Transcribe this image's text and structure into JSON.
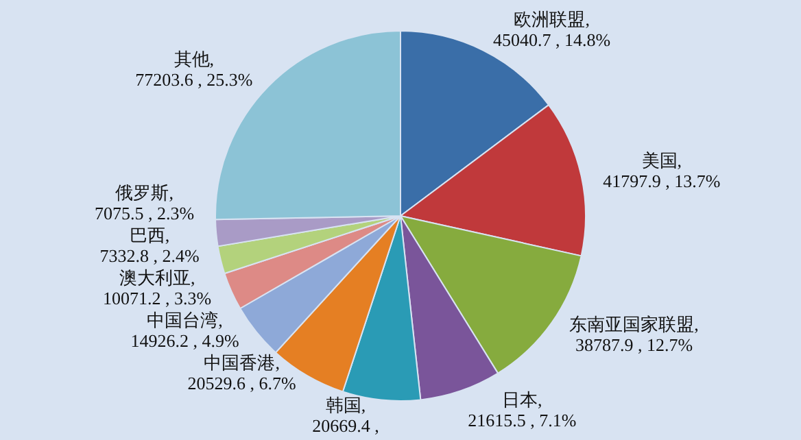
{
  "chart_data": {
    "type": "pie",
    "categories": [
      "欧洲联盟",
      "美国",
      "东南亚国家联盟",
      "日本",
      "韩国",
      "中国香港",
      "中国台湾",
      "澳大利亚",
      "巴西",
      "俄罗斯",
      "其他"
    ],
    "values": [
      45040.7,
      41797.9,
      38787.9,
      21615.5,
      20669.4,
      20529.6,
      14926.2,
      10071.2,
      7332.8,
      7075.5,
      77203.6
    ],
    "colors": [
      "#3a6ea8",
      "#c0393b",
      "#86ab3e",
      "#7a559a",
      "#2a9bb5",
      "#e57f23",
      "#8ea9d8",
      "#dd8a86",
      "#b3d27c",
      "#a99bc6",
      "#8cc3d6"
    ],
    "value_labels": [
      ", 45040.7 , 14.8%",
      ", 41797.9 , 13.7%",
      ", 38787.9 , 12.7%",
      ", 21615.5 , 7.1%",
      ", 20669.4 ,",
      ", 20529.6 , 6.7%",
      ", 14926.2 , 4.9%",
      ", 10071.2 , 3.3%",
      ", 7332.8 , 2.4%",
      ", 7075.5 , 2.3%",
      ", 77203.6 , 25.3%"
    ]
  }
}
